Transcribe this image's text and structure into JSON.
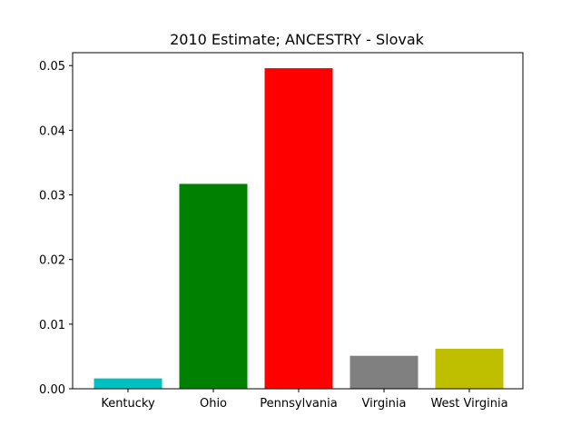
{
  "chart_data": {
    "type": "bar",
    "title": "2010 Estimate; ANCESTRY - Slovak",
    "xlabel": "",
    "ylabel": "",
    "categories": [
      " Kentucky",
      " Ohio",
      " Pennsylvania",
      " Virginia",
      " West Virginia"
    ],
    "values": [
      0.0016,
      0.0317,
      0.0496,
      0.0051,
      0.0062
    ],
    "colors": [
      "#00bfbf",
      "#008000",
      "#ff0000",
      "#808080",
      "#bfbf00"
    ],
    "ylim": [
      0,
      0.052
    ],
    "yticks": [
      0.0,
      0.01,
      0.02,
      0.03,
      0.04,
      0.05
    ],
    "ytick_labels": [
      "0.00",
      "0.01",
      "0.02",
      "0.03",
      "0.04",
      "0.05"
    ],
    "grid": false,
    "legend": false
  }
}
